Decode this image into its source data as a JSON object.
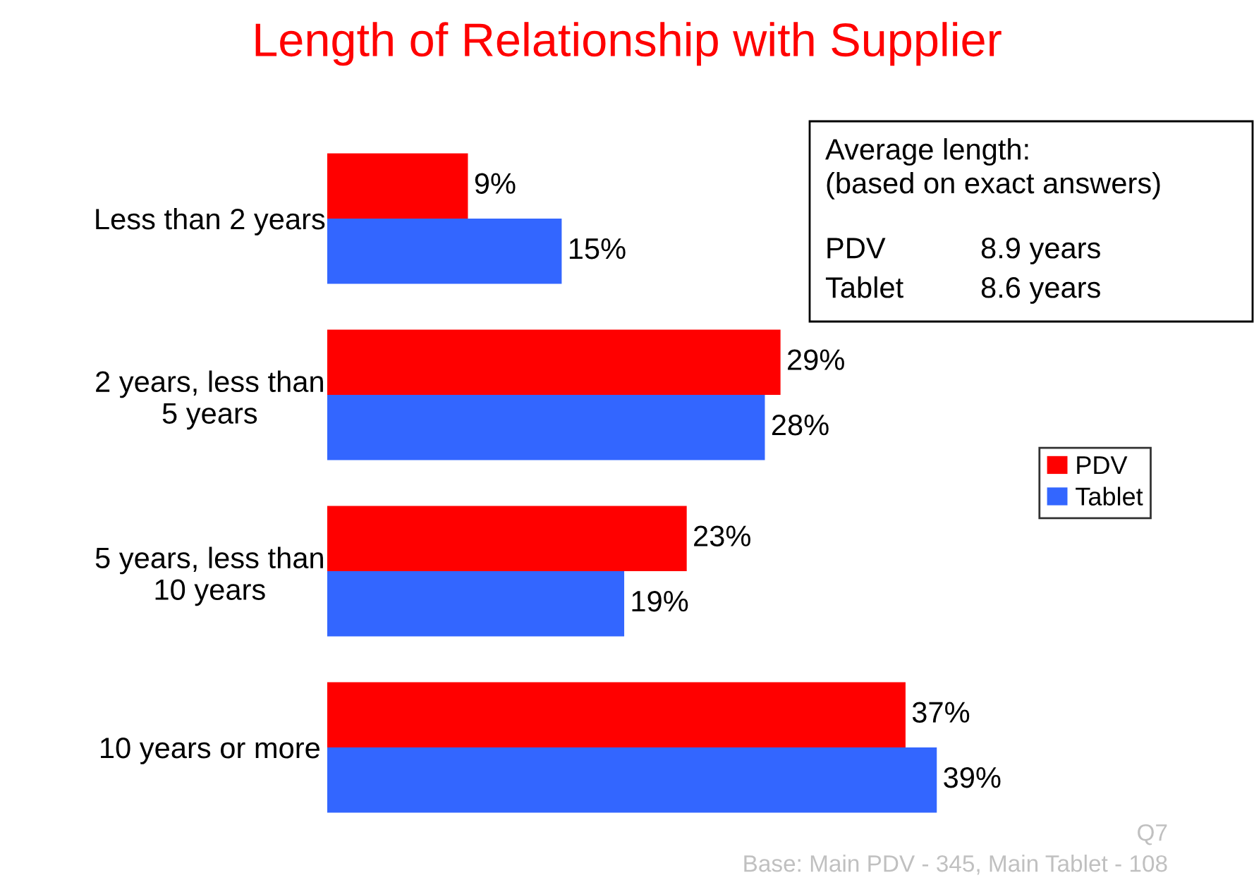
{
  "chart_data": {
    "type": "bar",
    "orientation": "horizontal",
    "title": "Length of Relationship with Supplier",
    "categories": [
      "Less than 2 years",
      "2 years, less than\n5 years",
      "5 years, less than\n10 years",
      "10 years or more"
    ],
    "series": [
      {
        "name": "PDV",
        "color": "#ff0000",
        "values": [
          9,
          29,
          23,
          37
        ],
        "value_labels": [
          "9%",
          "29%",
          "23%",
          "37%"
        ]
      },
      {
        "name": "Tablet",
        "color": "#3366ff",
        "values": [
          15,
          28,
          19,
          39
        ],
        "value_labels": [
          "15%",
          "28%",
          "19%",
          "39%"
        ]
      }
    ],
    "grid": false,
    "legend": "right",
    "annotations": [
      "Average length:\n(based on exact answers)",
      "PDV\t8.9 years",
      "Tablet\t8.6 years",
      "Q7",
      "Base: Main PDV - 345, Main Tablet - 108"
    ]
  }
}
